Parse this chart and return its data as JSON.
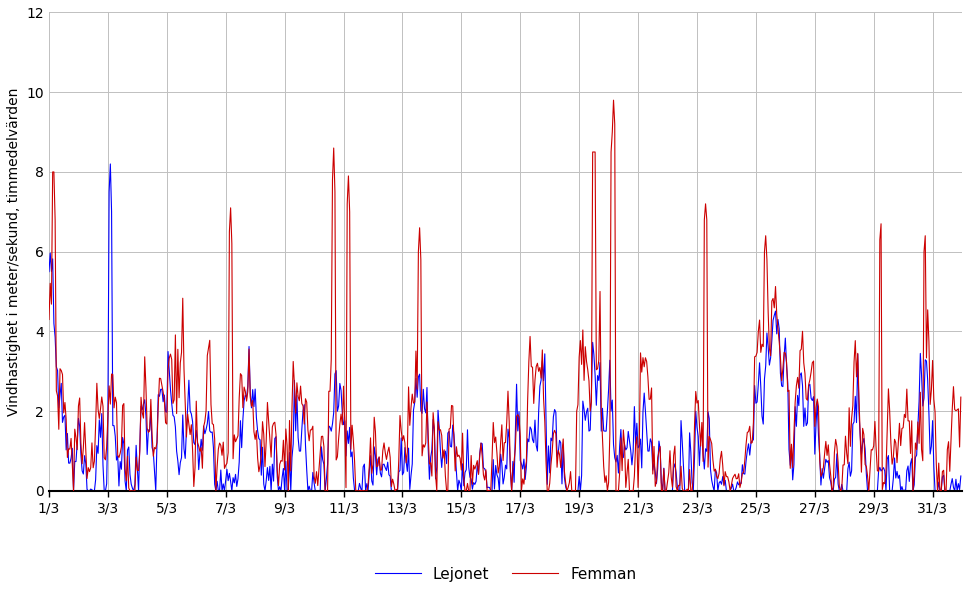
{
  "t_start": 0,
  "t_end": 31,
  "n_points": 744,
  "ylabel": "Vindhastighet i meter/sekund, timmedelvärden",
  "ylim": [
    0,
    12
  ],
  "yticks": [
    0,
    2,
    4,
    6,
    8,
    10,
    12
  ],
  "xtick_positions": [
    0,
    2,
    4,
    6,
    8,
    10,
    12,
    14,
    16,
    18,
    20,
    22,
    24,
    26,
    28,
    30
  ],
  "xtick_labels": [
    "1/3",
    "3/3",
    "5/3",
    "7/3",
    "9/3",
    "11/3",
    "13/3",
    "15/3",
    "17/3",
    "19/3",
    "21/3",
    "23/3",
    "25/3",
    "27/3",
    "29/3",
    "31/3"
  ],
  "legend_labels": [
    "Lejonet",
    "Femman"
  ],
  "lejonet_color": "#0000FF",
  "femman_color": "#CC0000",
  "background_color": "#FFFFFF",
  "grid_color": "#C0C0C0",
  "linewidth": 0.8,
  "legend_fontsize": 11,
  "ylabel_fontsize": 10,
  "tick_fontsize": 10,
  "xlim_end": 31.0
}
